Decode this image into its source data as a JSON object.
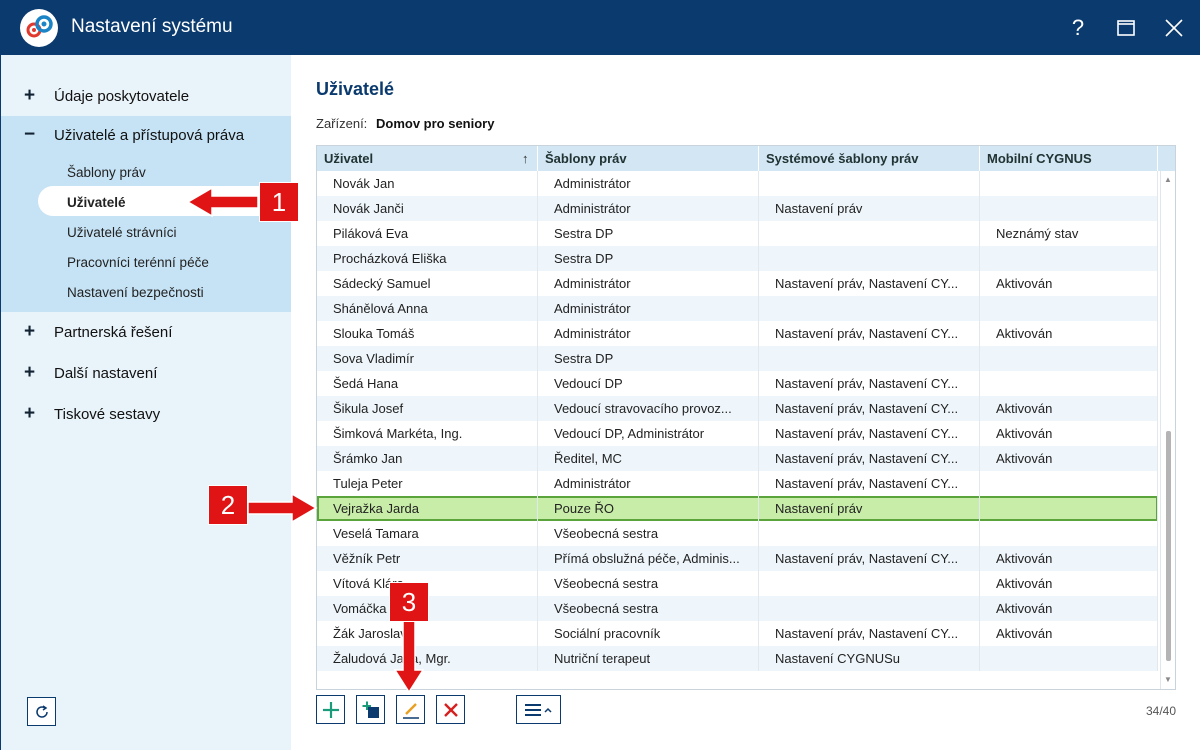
{
  "window": {
    "title": "Nastavení systému",
    "help_label": "?"
  },
  "sidebar": {
    "items": [
      {
        "label": "Údaje poskytovatele",
        "expander": "+"
      },
      {
        "label": "Uživatelé a přístupová práva",
        "expander": "−"
      },
      {
        "label": "Partnerská řešení",
        "expander": "+"
      },
      {
        "label": "Další nastavení",
        "expander": "+"
      },
      {
        "label": "Tiskové sestavy",
        "expander": "+"
      }
    ],
    "subitems": [
      {
        "label": "Šablony práv"
      },
      {
        "label": "Uživatelé"
      },
      {
        "label": "Uživatelé strávníci"
      },
      {
        "label": "Pracovníci terénní péče"
      },
      {
        "label": "Nastavení bezpečnosti"
      }
    ]
  },
  "main": {
    "title": "Uživatelé",
    "facility_label": "Zařízení:",
    "facility_value": "Domov pro seniory",
    "columns": [
      "Uživatel",
      "Šablony práv",
      "Systémové šablony práv",
      "Mobilní CYGNUS"
    ],
    "sort_indicator": "↑",
    "rows": [
      [
        "Novák Jan",
        "Administrátor",
        "",
        ""
      ],
      [
        "Novák Janči",
        "Administrátor",
        "Nastavení práv",
        ""
      ],
      [
        "Piláková Eva",
        "Sestra DP",
        "",
        "Neznámý stav"
      ],
      [
        "Procházková Eliška",
        "Sestra DP",
        "",
        ""
      ],
      [
        "Sádecký Samuel",
        "Administrátor",
        "Nastavení práv, Nastavení CY...",
        "Aktivován"
      ],
      [
        "Shánělová Anna",
        "Administrátor",
        "",
        ""
      ],
      [
        "Slouka Tomáš",
        "Administrátor",
        "Nastavení práv, Nastavení CY...",
        "Aktivován"
      ],
      [
        "Sova Vladimír",
        "Sestra DP",
        "",
        ""
      ],
      [
        "Šedá Hana",
        "Vedoucí DP",
        "Nastavení práv, Nastavení CY...",
        ""
      ],
      [
        "Šikula Josef",
        "Vedoucí stravovacího provoz...",
        "Nastavení práv, Nastavení CY...",
        "Aktivován"
      ],
      [
        "Šimková Markéta, Ing.",
        "Vedoucí DP, Administrátor",
        "Nastavení práv, Nastavení CY...",
        "Aktivován"
      ],
      [
        "Šrámko Jan",
        "Ředitel, MC",
        "Nastavení práv, Nastavení CY...",
        "Aktivován"
      ],
      [
        "Tuleja Peter",
        "Administrátor",
        "Nastavení práv, Nastavení CY...",
        ""
      ],
      [
        "Vejražka Jarda",
        "Pouze ŘO",
        "Nastavení práv",
        ""
      ],
      [
        "Veselá Tamara",
        "Všeobecná sestra",
        "",
        ""
      ],
      [
        "Věžník Petr",
        "Přímá obslužná péče, Adminis...",
        "Nastavení práv, Nastavení CY...",
        "Aktivován"
      ],
      [
        "Vítová Klára",
        "Všeobecná sestra",
        "",
        "Aktivován"
      ],
      [
        "Vomáčka",
        "Všeobecná sestra",
        "",
        "Aktivován"
      ],
      [
        "Žák Jaroslav",
        "Sociální pracovník",
        "Nastavení práv, Nastavení CY...",
        "Aktivován"
      ],
      [
        "Žaludová Jana, Mgr.",
        "Nutriční terapeut",
        "Nastavení CYGNUSu",
        ""
      ]
    ],
    "selected_row": 13,
    "counter": "34/40"
  },
  "callouts": [
    "1",
    "2",
    "3"
  ],
  "colors": {
    "titlebar": "#0b3a6e",
    "sidebar_bg": "#e9f3fa",
    "sidebar_group": "#c6e3f5",
    "selected_row": "#c8eda8",
    "callout": "#e01414"
  }
}
